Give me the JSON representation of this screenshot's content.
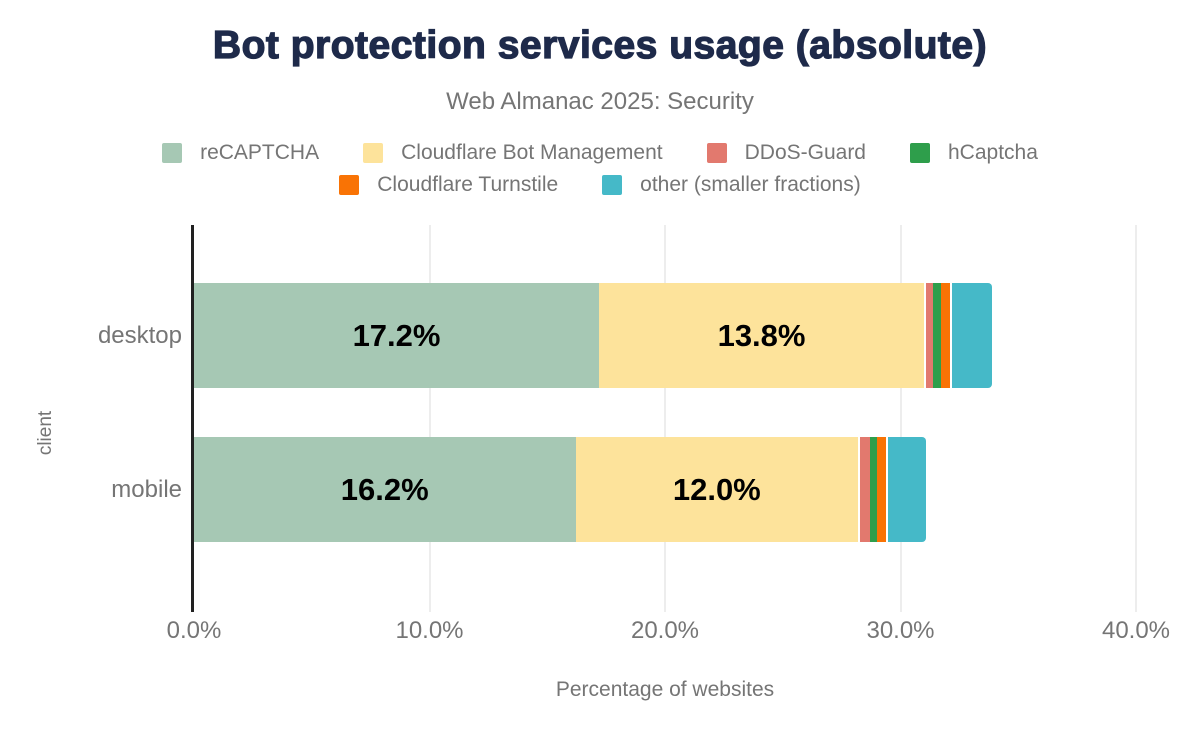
{
  "title": "Bot protection services usage (absolute)",
  "subtitle": "Web Almanac 2025: Security",
  "chart_data": {
    "type": "bar",
    "orientation": "horizontal",
    "stacked": true,
    "title": "Bot protection services usage (absolute)",
    "subtitle": "Web Almanac 2025: Security",
    "categories": [
      "desktop",
      "mobile"
    ],
    "series": [
      {
        "name": "reCAPTCHA",
        "color": "#a6c8b4",
        "values": [
          17.2,
          16.2
        ]
      },
      {
        "name": "Cloudflare Bot Management",
        "color": "#fde39b",
        "values": [
          13.8,
          12.0
        ]
      },
      {
        "name": "DDoS-Guard",
        "color": "#e2796e",
        "values": [
          0.4,
          0.5
        ]
      },
      {
        "name": "hCaptcha",
        "color": "#2e9e4b",
        "values": [
          0.3,
          0.3
        ]
      },
      {
        "name": "Cloudflare Turnstile",
        "color": "#f97305",
        "values": [
          0.4,
          0.4
        ]
      },
      {
        "name": "other (smaller fractions)",
        "color": "#45b9c8",
        "values": [
          1.8,
          1.7
        ]
      }
    ],
    "bar_labels": [
      [
        "17.2%",
        "13.8%"
      ],
      [
        "16.2%",
        "12.0%"
      ]
    ],
    "xlabel": "Percentage of websites",
    "ylabel": "client",
    "x_ticks": [
      "0.0%",
      "10.0%",
      "20.0%",
      "30.0%",
      "40.0%"
    ],
    "xlim": [
      0,
      40
    ],
    "grid": true,
    "legend_position": "top",
    "legend_rows": [
      4,
      2
    ]
  }
}
